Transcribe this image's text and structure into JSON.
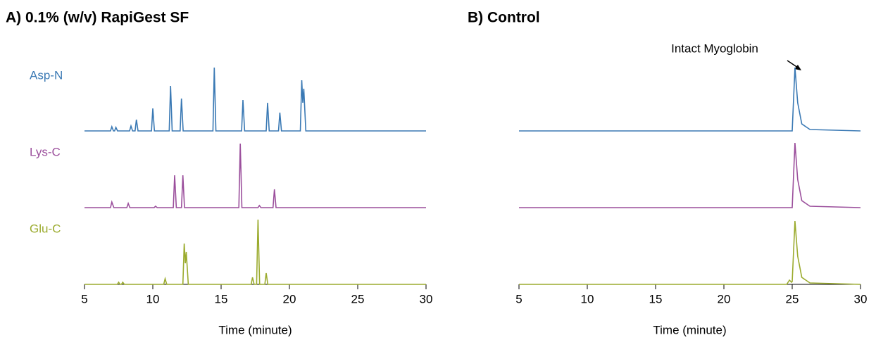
{
  "chart_data": [
    {
      "type": "line",
      "title": "A)  0.1% (w/v) RapiGest SF",
      "xlabel": "Time (minute)",
      "xlim": [
        5,
        30
      ],
      "xticks": [
        5,
        10,
        15,
        20,
        25,
        30
      ],
      "series": [
        {
          "name": "Asp-N",
          "color": "#3a79b4",
          "x": [
            5,
            6.9,
            7.0,
            7.12,
            7.2,
            7.3,
            7.42,
            8.3,
            8.4,
            8.52,
            8.7,
            8.8,
            8.92,
            9.9,
            10.0,
            10.12,
            11.2,
            11.3,
            11.42,
            12.0,
            12.1,
            12.22,
            14.4,
            14.5,
            14.62,
            16.5,
            16.6,
            16.72,
            18.3,
            18.4,
            18.52,
            19.2,
            19.3,
            19.42,
            20.8,
            20.9,
            20.98,
            21.05,
            21.2,
            30
          ],
          "values": [
            0,
            0,
            6,
            0,
            0,
            5,
            0,
            0,
            7,
            0,
            0,
            16,
            0,
            0,
            32,
            0,
            0,
            64,
            0,
            0,
            46,
            0,
            0,
            90,
            0,
            0,
            44,
            0,
            0,
            40,
            0,
            0,
            26,
            0,
            0,
            72,
            40,
            60,
            0,
            0
          ]
        },
        {
          "name": "Lys-C",
          "color": "#9b4f9c",
          "x": [
            5,
            6.9,
            7.0,
            7.15,
            8.1,
            8.2,
            8.32,
            10.1,
            10.2,
            10.32,
            11.5,
            11.6,
            11.72,
            12.1,
            12.2,
            12.32,
            16.3,
            16.4,
            16.52,
            17.7,
            17.8,
            17.92,
            18.8,
            18.9,
            19.02,
            30
          ],
          "values": [
            0,
            0,
            8,
            0,
            0,
            6,
            0,
            0,
            2,
            0,
            0,
            46,
            0,
            0,
            46,
            0,
            0,
            91,
            0,
            0,
            3,
            0,
            0,
            26,
            0,
            0
          ]
        },
        {
          "name": "Glu-C",
          "color": "#9bab2e",
          "x": [
            5,
            7.4,
            7.5,
            7.6,
            7.7,
            7.8,
            7.92,
            10.8,
            10.9,
            11.02,
            12.2,
            12.3,
            12.38,
            12.45,
            12.6,
            17.2,
            17.3,
            17.42,
            17.6,
            17.7,
            17.82,
            18.2,
            18.3,
            18.42,
            30
          ],
          "values": [
            0,
            0,
            3,
            0,
            0,
            3,
            0,
            0,
            8,
            0,
            0,
            58,
            30,
            46,
            0,
            0,
            10,
            0,
            0,
            92,
            0,
            0,
            16,
            0,
            0
          ]
        }
      ]
    },
    {
      "type": "line",
      "title": "B)  Control",
      "xlabel": "Time (minute)",
      "annotation": "Intact Myoglobin",
      "xlim": [
        5,
        30
      ],
      "xticks": [
        5,
        10,
        15,
        20,
        25,
        30
      ],
      "series": [
        {
          "color": "#3a79b4",
          "x": [
            5,
            25.0,
            25.2,
            25.4,
            25.7,
            26.3,
            30
          ],
          "values": [
            0,
            0,
            90,
            40,
            10,
            2,
            0
          ]
        },
        {
          "color": "#9b4f9c",
          "x": [
            5,
            25.0,
            25.2,
            25.4,
            25.7,
            26.3,
            30
          ],
          "values": [
            0,
            0,
            92,
            40,
            10,
            2,
            0
          ]
        },
        {
          "color": "#9bab2e",
          "x": [
            5,
            24.6,
            24.8,
            24.95,
            25.0,
            25.2,
            25.4,
            25.7,
            26.3,
            30
          ],
          "values": [
            0,
            0,
            6,
            3,
            4,
            90,
            40,
            10,
            2,
            0
          ]
        }
      ]
    }
  ]
}
